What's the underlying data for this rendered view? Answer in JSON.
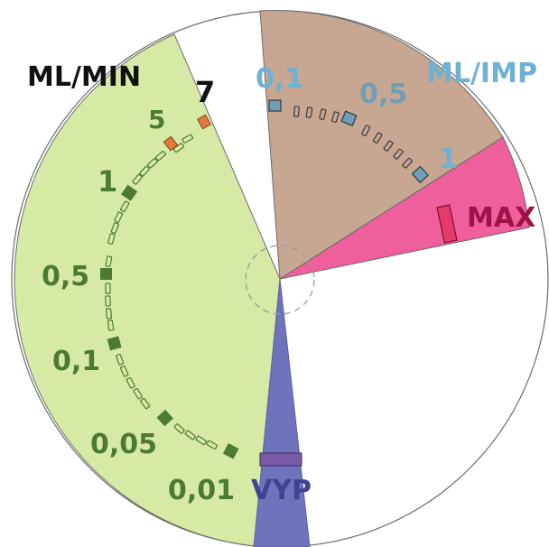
{
  "dial": {
    "labels": {
      "ml_min": "ML/MIN",
      "ml_imp": "ML/IMP",
      "max": "MAX",
      "vyp": "VYP"
    },
    "min_scale": [
      "7",
      "5",
      "1",
      "0,5",
      "0,1",
      "0,05",
      "0,01"
    ],
    "imp_scale": [
      "0,1",
      "0,5",
      "1"
    ]
  },
  "colors": {
    "min_sector": "#d6eaa6",
    "imp_sector": "#c7a692",
    "max_sector": "#ee5f9c",
    "vyp_sector": "#6f73bb",
    "min_label": "#4c7a35",
    "imp_label": "#6fb1d3",
    "max_label": "#9c1346",
    "vyp_label": "#3e4396",
    "marker_orange": "#e07b3c",
    "marker_blue": "#6f9fb4",
    "marker_green": "#4c7a35",
    "marker_max": "#e63a6a"
  }
}
